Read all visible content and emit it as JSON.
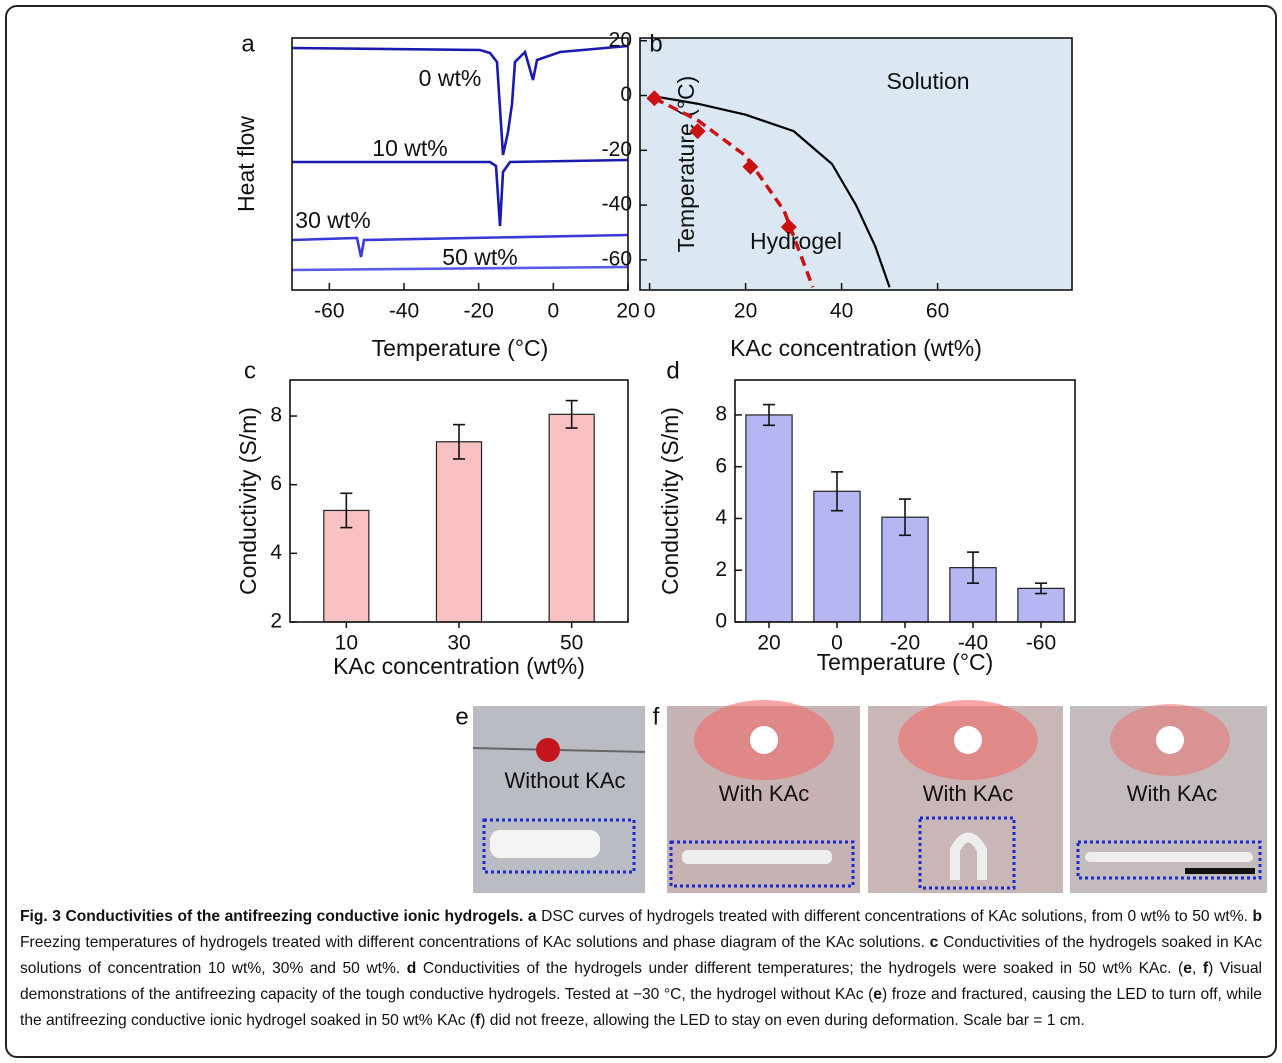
{
  "chart_data": [
    {
      "type": "dsc",
      "panel": "a",
      "xlabel": "Temperature (°C)",
      "ylabel": "Heat flow",
      "xlim": [
        -70,
        20
      ],
      "xticks": [
        -60,
        -40,
        -20,
        0,
        20
      ],
      "series": [
        {
          "name": "0 wt%",
          "color": "#1a1ab0"
        },
        {
          "name": "10 wt%",
          "color": "#1a1ab0"
        },
        {
          "name": "30 wt%",
          "color": "#3a3ad8"
        },
        {
          "name": "50 wt%",
          "color": "#5a5ae6"
        }
      ]
    },
    {
      "type": "line",
      "panel": "b",
      "xlabel": "KAc concentration (wt%)",
      "ylabel": "Temperature (°C)",
      "xlim": [
        -2,
        88
      ],
      "xticks": [
        0,
        20,
        40,
        60
      ],
      "ylim": [
        -71,
        21
      ],
      "yticks": [
        20,
        0,
        -20,
        -40,
        -60
      ],
      "background": "#dbe8f3",
      "annotations": [
        "Solution",
        "Hydrogel"
      ],
      "series": [
        {
          "color": "#000000",
          "x": [
            0,
            10,
            20,
            30,
            38,
            43,
            47,
            50
          ],
          "values": [
            0,
            -3,
            -7,
            -13,
            -25,
            -40,
            -55,
            -70
          ]
        },
        {
          "color": "#cc1111",
          "dashed": true,
          "x": [
            1,
            10,
            20,
            28,
            34
          ],
          "values": [
            -1,
            -9,
            -22,
            -42,
            -70
          ]
        },
        {
          "color": "#cc1111",
          "marker": "diamond",
          "x": [
            1,
            10,
            21,
            29
          ],
          "values": [
            -1,
            -13,
            -26,
            -48
          ]
        }
      ]
    },
    {
      "type": "bar",
      "panel": "c",
      "xlabel": "KAc concentration (wt%)",
      "ylabel": "Conductivity (S/m)",
      "categories": [
        "10",
        "30",
        "50"
      ],
      "values": [
        5.25,
        7.25,
        8.05
      ],
      "errors": [
        0.5,
        0.5,
        0.4
      ],
      "color": "#f9c1c1",
      "ylim": [
        2,
        9.05
      ],
      "yticks": [
        2,
        4,
        6,
        8
      ]
    },
    {
      "type": "bar",
      "panel": "d",
      "xlabel": "Temperature (°C)",
      "ylabel": "Conductivity (S/m)",
      "categories": [
        "20",
        "0",
        "-20",
        "-40",
        "-60"
      ],
      "values": [
        8.0,
        5.05,
        4.05,
        2.1,
        1.3
      ],
      "errors": [
        0.4,
        0.75,
        0.7,
        0.6,
        0.2
      ],
      "color": "#b6b6f2",
      "ylim": [
        0,
        9.35
      ],
      "yticks": [
        0,
        2,
        4,
        6,
        8
      ]
    }
  ],
  "photos": [
    {
      "panel": "e",
      "label": "Without KAc"
    },
    {
      "panel": "f",
      "label": "With KAc"
    },
    {
      "label": "With KAc"
    },
    {
      "label": "With KAc"
    }
  ],
  "caption": [
    {
      "text": "Fig. 3 Conductivities of the antifreezing conductive ionic hydrogels.",
      "bold": true
    },
    {
      "text": " a",
      "bold": true
    },
    {
      "text": " DSC curves of hydrogels treated with different concentrations of KAc solutions, from 0 wt% to 50 wt%. ",
      "bold": false
    },
    {
      "text": "b",
      "bold": true
    },
    {
      "text": " Freezing temperatures of hydrogels treated with different concentrations of KAc solutions and phase diagram of the KAc solutions. ",
      "bold": false
    },
    {
      "text": "c",
      "bold": true
    },
    {
      "text": " Conductivities of the hydrogels soaked in KAc solutions of concentration 10 wt%, 30% and 50 wt%. ",
      "bold": false
    },
    {
      "text": "d",
      "bold": true
    },
    {
      "text": " Conductivities of the hydrogels under different temperatures; the hydrogels were soaked in 50 wt% KAc. (",
      "bold": false
    },
    {
      "text": "e",
      "bold": true
    },
    {
      "text": ", ",
      "bold": false
    },
    {
      "text": "f",
      "bold": true
    },
    {
      "text": ") Visual demonstrations of the antifreezing capacity of the tough conductive hydrogels. Tested at −30 °C, the hydrogel without KAc (",
      "bold": false
    },
    {
      "text": "e",
      "bold": true
    },
    {
      "text": ") froze and fractured, causing the LED to turn off, while the antifreezing conductive ionic hydrogel soaked in 50 wt% KAc (",
      "bold": false
    },
    {
      "text": "f",
      "bold": true
    },
    {
      "text": ") did not freeze, allowing the LED to stay on even during deformation. Scale bar = 1 cm.",
      "bold": false
    }
  ]
}
